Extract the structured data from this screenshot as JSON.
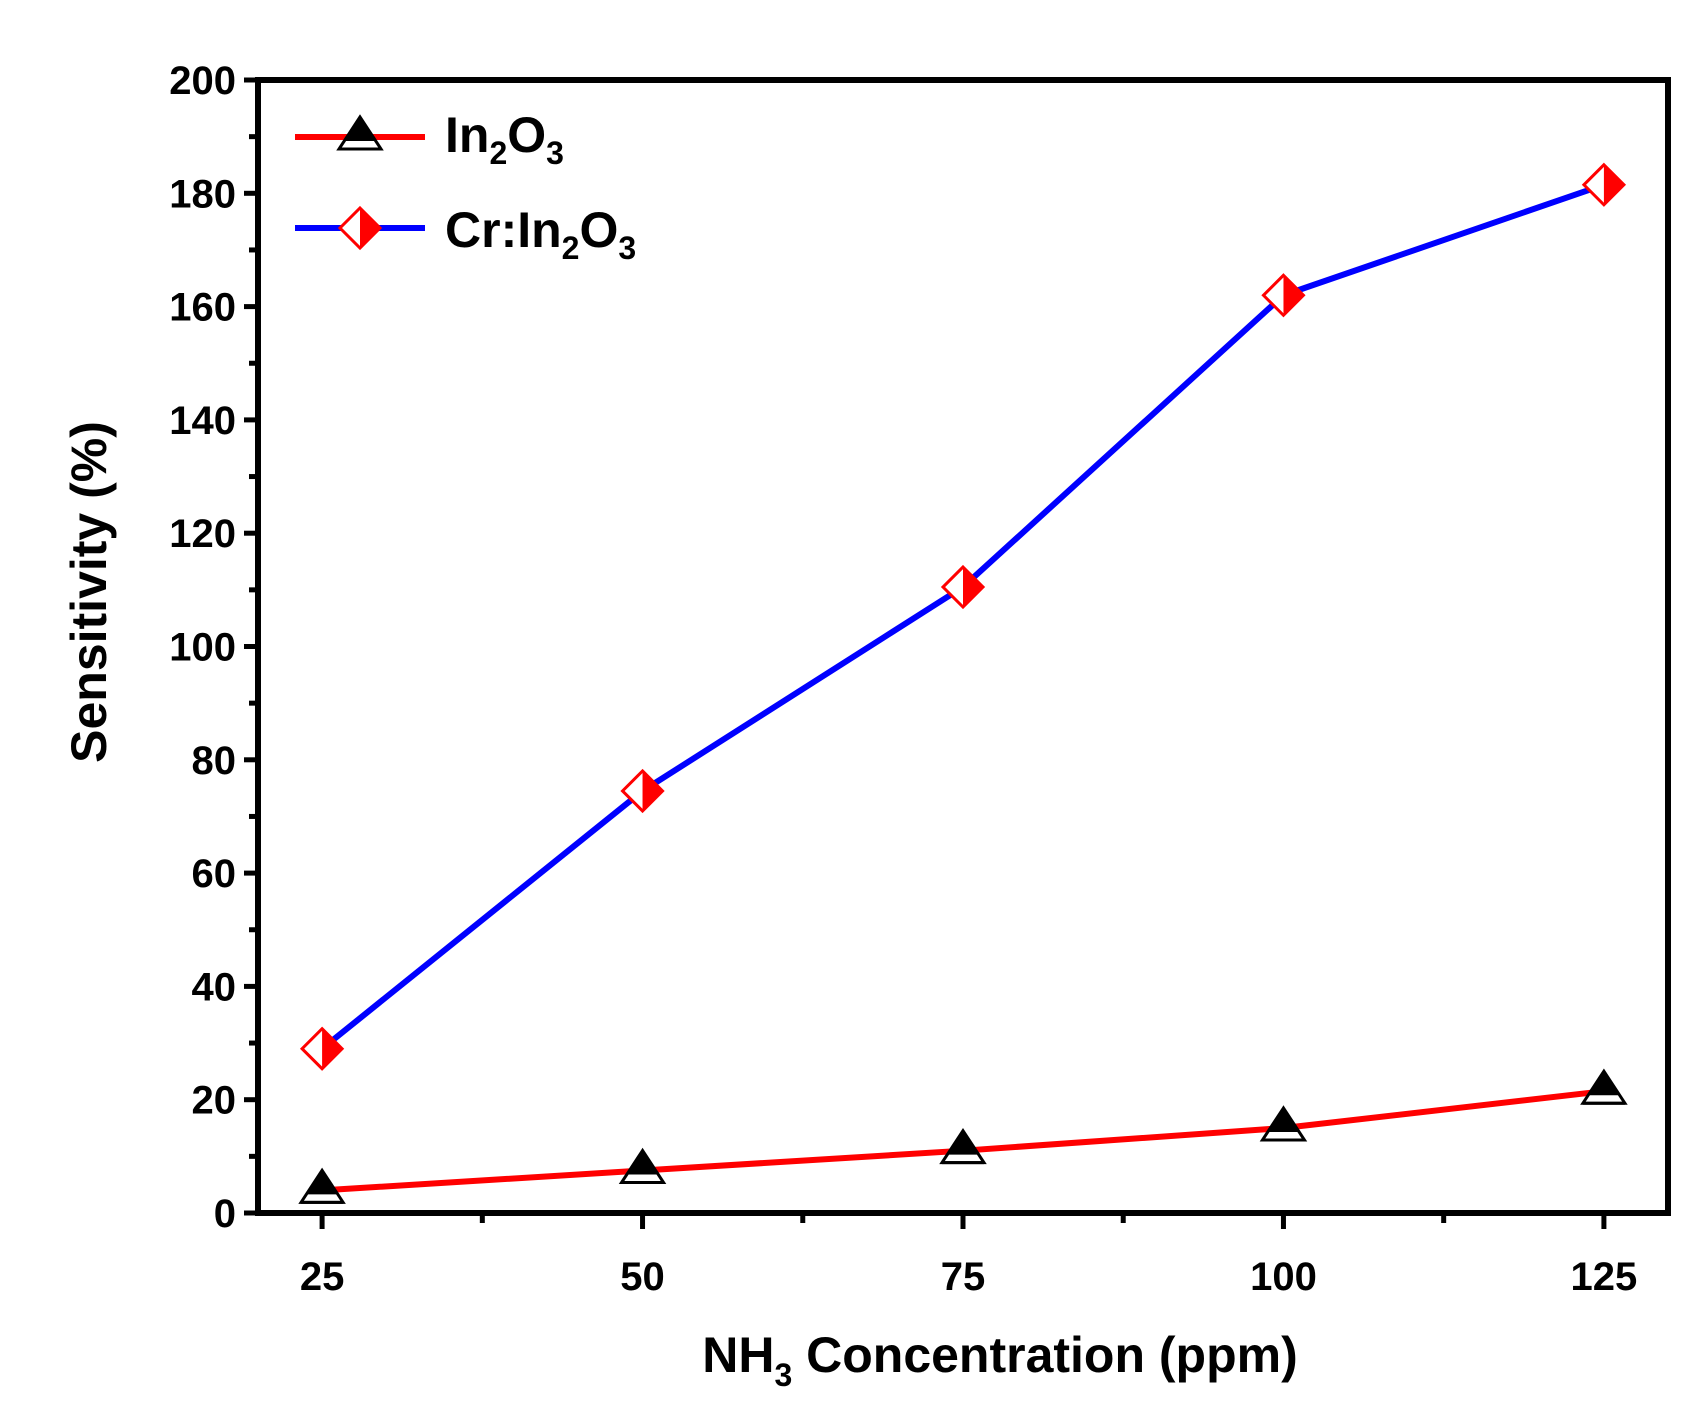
{
  "chart_data": {
    "type": "line",
    "x": [
      25,
      50,
      75,
      100,
      125
    ],
    "series": [
      {
        "name": "In2O3",
        "label_parts": [
          "In",
          "2",
          "O",
          "3"
        ],
        "values": [
          4,
          7.5,
          11,
          15,
          21.5
        ],
        "line_color": "#ff0000",
        "marker": "triangle",
        "marker_colors": [
          "#000000",
          "#ffffff"
        ]
      },
      {
        "name": "Cr:In2O3",
        "label_parts": [
          "Cr:In",
          "2",
          "O",
          "3"
        ],
        "values": [
          29,
          74.5,
          110.5,
          162,
          181.5
        ],
        "line_color": "#0000ff",
        "marker": "diamond",
        "marker_colors": [
          "#ff0000",
          "#ffffff"
        ]
      }
    ],
    "xlabel_parts": [
      "NH",
      "3",
      " Concentration (ppm)"
    ],
    "ylabel": "Sensitivity (%)",
    "x_ticks": [
      "25",
      "50",
      "75",
      "100",
      "125"
    ],
    "y_ticks": [
      "0",
      "20",
      "40",
      "60",
      "80",
      "100",
      "120",
      "140",
      "160",
      "180",
      "200"
    ],
    "xlim": [
      20,
      130
    ],
    "ylim": [
      0,
      200
    ],
    "legend_position": "top-left",
    "grid": false
  }
}
